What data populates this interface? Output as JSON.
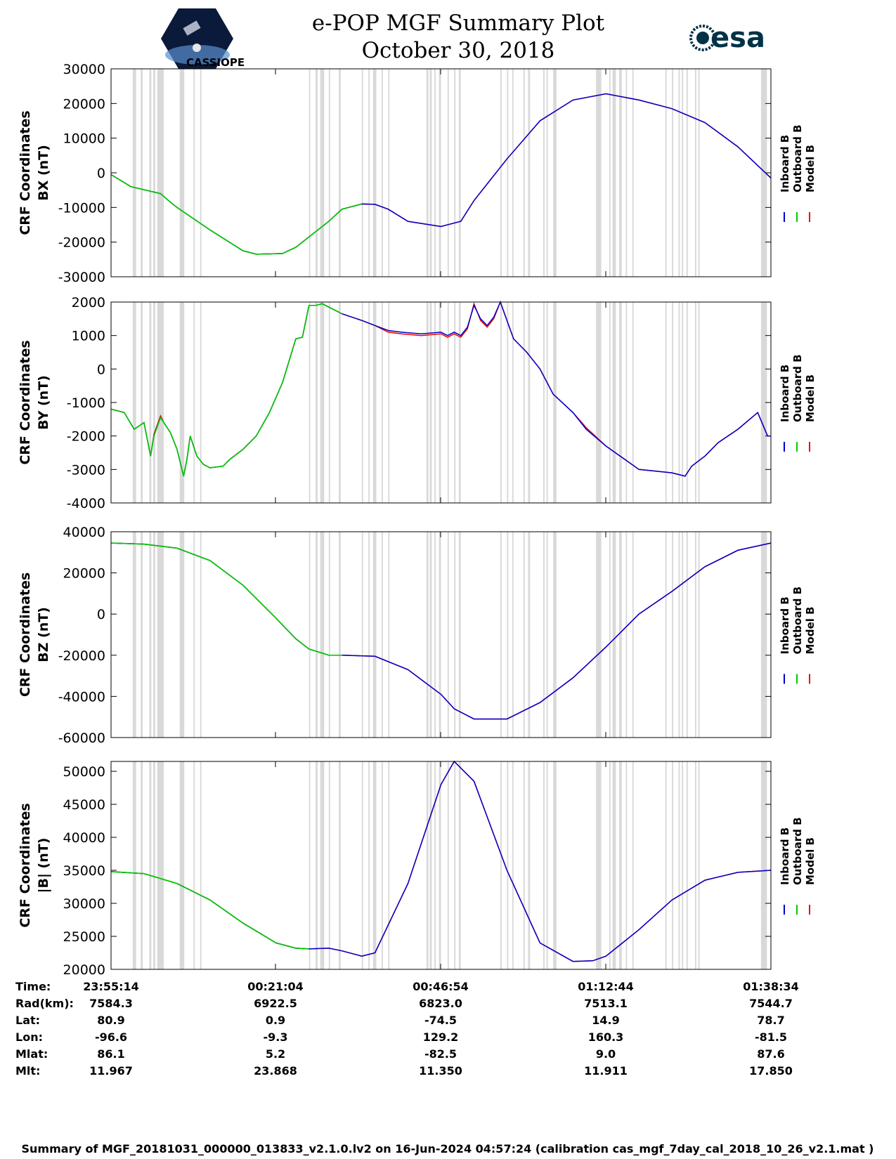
{
  "header": {
    "title_line1": "e-POP MGF Summary Plot",
    "title_line2": "October 30, 2018",
    "logo_left": "CASSIOPE",
    "logo_right": "esa"
  },
  "colors": {
    "inboard": "#0000cc",
    "outboard": "#00cc00",
    "model": "#ee0000",
    "gap_shade": "#d9d9d9"
  },
  "chart_data": [
    {
      "type": "line",
      "ylabel_line1": "CRF Coordinates",
      "ylabel_line2": "BX (nT)",
      "ylim": [
        -30000,
        30000
      ],
      "yticks": [
        "30000",
        "20000",
        "10000",
        "0",
        "-10000",
        "-20000",
        "-30000"
      ],
      "legend": [
        "Inboard B",
        "Outboard B",
        "Model B"
      ],
      "x": [
        0,
        0.03,
        0.075,
        0.09,
        0.1,
        0.15,
        0.2,
        0.22,
        0.26,
        0.28,
        0.33,
        0.35,
        0.38,
        0.4,
        0.42,
        0.45,
        0.5,
        0.53,
        0.55,
        0.6,
        0.65,
        0.7,
        0.75,
        0.8,
        0.85,
        0.9,
        0.95,
        1
      ],
      "series": [
        {
          "name": "Outboard B",
          "values": [
            -500,
            -4000,
            -6000,
            -8500,
            -10000,
            -16500,
            -22500,
            -23500,
            -23300,
            -21500,
            -14000,
            -10500,
            -9000,
            -9100,
            -10500,
            -14000,
            -15500,
            -14000,
            -8000,
            4000,
            15000,
            21000,
            22800,
            21000,
            18500,
            14500,
            7500,
            -1500
          ]
        },
        {
          "name": "Inboard B",
          "values": [
            -500,
            -4000,
            -6000,
            -8500,
            -10000,
            -16500,
            -22500,
            -23500,
            -23300,
            -21500,
            -14000,
            -10500,
            -9000,
            -9100,
            -10500,
            -14000,
            -15500,
            -14000,
            -8000,
            4000,
            15000,
            21000,
            22800,
            21000,
            18500,
            14500,
            7500,
            -1500
          ]
        },
        {
          "name": "Model B",
          "values": [
            -500,
            -4000,
            -6000,
            -8500,
            -10000,
            -16500,
            -22500,
            -23500,
            -23300,
            -21500,
            -14000,
            -10500,
            -9000,
            -9100,
            -10500,
            -14000,
            -15500,
            -14000,
            -8000,
            4000,
            15000,
            21000,
            22800,
            21000,
            18500,
            14500,
            7500,
            -1500
          ]
        }
      ]
    },
    {
      "type": "line",
      "ylabel_line1": "CRF Coordinates",
      "ylabel_line2": "BY (nT)",
      "ylim": [
        -4000,
        2000
      ],
      "yticks": [
        "2000",
        "1000",
        "0",
        "-1000",
        "-2000",
        "-3000",
        "-4000"
      ],
      "legend": [
        "Inboard B",
        "Outboard B",
        "Model B"
      ],
      "x": [
        0,
        0.01,
        0.02,
        0.035,
        0.05,
        0.06,
        0.065,
        0.075,
        0.08,
        0.09,
        0.1,
        0.11,
        0.115,
        0.12,
        0.13,
        0.14,
        0.15,
        0.17,
        0.18,
        0.2,
        0.22,
        0.24,
        0.26,
        0.28,
        0.29,
        0.3,
        0.31,
        0.32,
        0.33,
        0.35,
        0.38,
        0.4,
        0.42,
        0.44,
        0.47,
        0.5,
        0.51,
        0.52,
        0.53,
        0.54,
        0.55,
        0.56,
        0.57,
        0.58,
        0.59,
        0.6,
        0.61,
        0.63,
        0.65,
        0.67,
        0.7,
        0.72,
        0.75,
        0.8,
        0.85,
        0.87,
        0.88,
        0.9,
        0.92,
        0.95,
        0.98,
        0.995,
        1
      ],
      "series": [
        {
          "name": "Outboard B",
          "values": [
            -1200,
            -1250,
            -1300,
            -1800,
            -1600,
            -2600,
            -2000,
            -1450,
            -1600,
            -1900,
            -2400,
            -3200,
            -2700,
            -2000,
            -2600,
            -2850,
            -2950,
            -2900,
            -2700,
            -2400,
            -2000,
            -1300,
            -400,
            900,
            950,
            1900,
            1900,
            1950,
            1850,
            1650,
            1450,
            1300,
            1150,
            1100,
            1050,
            1100,
            1000,
            1100,
            1000,
            1250,
            1900,
            1500,
            1300,
            1550,
            2000,
            1450,
            900,
            500,
            0,
            -750,
            -1300,
            -1800,
            -2300,
            -3000,
            -3100,
            -3200,
            -2900,
            -2600,
            -2200,
            -1800,
            -1300,
            -2000,
            -2000
          ]
        },
        {
          "name": "Inboard B",
          "values": [
            -1200,
            -1250,
            -1300,
            -1800,
            -1600,
            -2600,
            -2000,
            -1450,
            -1600,
            -1900,
            -2400,
            -3200,
            -2700,
            -2000,
            -2600,
            -2850,
            -2950,
            -2900,
            -2700,
            -2400,
            -2000,
            -1300,
            -400,
            900,
            950,
            1900,
            1900,
            1950,
            1850,
            1650,
            1450,
            1300,
            1150,
            1100,
            1050,
            1100,
            1000,
            1100,
            1000,
            1250,
            1900,
            1500,
            1300,
            1550,
            2000,
            1450,
            900,
            500,
            0,
            -750,
            -1300,
            -1800,
            -2300,
            -3000,
            -3100,
            -3200,
            -2900,
            -2600,
            -2200,
            -1800,
            -1300,
            -2000,
            -2000
          ]
        },
        {
          "name": "Model B",
          "values": [
            -1200,
            -1250,
            -1300,
            -1800,
            -1600,
            -2600,
            -1950,
            -1400,
            -1600,
            -1900,
            -2400,
            -3200,
            -2700,
            -2000,
            -2600,
            -2850,
            -2950,
            -2900,
            -2700,
            -2400,
            -2000,
            -1300,
            -400,
            900,
            950,
            1900,
            1900,
            1950,
            1850,
            1650,
            1450,
            1300,
            1100,
            1050,
            1000,
            1050,
            950,
            1050,
            950,
            1200,
            1950,
            1450,
            1250,
            1500,
            2000,
            1450,
            900,
            500,
            0,
            -750,
            -1300,
            -1750,
            -2300,
            -3000,
            -3100,
            -3200,
            -2900,
            -2600,
            -2200,
            -1800,
            -1300,
            -2000,
            -2000
          ]
        }
      ]
    },
    {
      "type": "line",
      "ylabel_line1": "CRF Coordinates",
      "ylabel_line2": "BZ (nT)",
      "ylim": [
        -60000,
        40000
      ],
      "yticks": [
        "40000",
        "20000",
        "0",
        "-20000",
        "-40000",
        "-60000"
      ],
      "legend": [
        "Inboard B",
        "Outboard B",
        "Model B"
      ],
      "x": [
        0,
        0.05,
        0.1,
        0.15,
        0.2,
        0.25,
        0.28,
        0.3,
        0.33,
        0.35,
        0.4,
        0.45,
        0.5,
        0.52,
        0.55,
        0.6,
        0.65,
        0.7,
        0.75,
        0.8,
        0.85,
        0.9,
        0.95,
        1
      ],
      "series": [
        {
          "name": "Outboard B",
          "values": [
            34500,
            34000,
            32000,
            26000,
            14000,
            -2000,
            -12000,
            -17000,
            -20000,
            -20000,
            -20500,
            -27000,
            -39000,
            -46000,
            -51000,
            -51000,
            -43000,
            -31000,
            -16000,
            0,
            11000,
            23000,
            31000,
            34500
          ]
        },
        {
          "name": "Inboard B",
          "values": [
            34500,
            34000,
            32000,
            26000,
            14000,
            -2000,
            -12000,
            -17000,
            -20000,
            -20000,
            -20500,
            -27000,
            -39000,
            -46000,
            -51000,
            -51000,
            -43000,
            -31000,
            -16000,
            0,
            11000,
            23000,
            31000,
            34500
          ]
        },
        {
          "name": "Model B",
          "values": [
            34500,
            34000,
            32000,
            26000,
            14000,
            -2000,
            -12000,
            -17000,
            -20000,
            -20000,
            -20500,
            -27000,
            -39000,
            -46000,
            -51000,
            -51000,
            -43000,
            -31000,
            -16000,
            0,
            11000,
            23000,
            31000,
            34500
          ]
        }
      ]
    },
    {
      "type": "line",
      "ylabel_line1": "CRF Coordinates",
      "ylabel_line2": "|B| (nT)",
      "ylim": [
        20000,
        51500
      ],
      "yticks": [
        "50000",
        "45000",
        "40000",
        "35000",
        "30000",
        "25000",
        "20000"
      ],
      "legend": [
        "Inboard B",
        "Outboard B",
        "Model B"
      ],
      "x": [
        0,
        0.05,
        0.1,
        0.15,
        0.2,
        0.25,
        0.28,
        0.3,
        0.33,
        0.35,
        0.38,
        0.4,
        0.45,
        0.5,
        0.52,
        0.55,
        0.6,
        0.65,
        0.7,
        0.73,
        0.75,
        0.8,
        0.85,
        0.9,
        0.95,
        1
      ],
      "series": [
        {
          "name": "Outboard B",
          "values": [
            34800,
            34500,
            33000,
            30500,
            27000,
            24000,
            23200,
            23100,
            23200,
            22800,
            22000,
            22500,
            33000,
            48000,
            51500,
            48500,
            35000,
            24000,
            21200,
            21300,
            22000,
            26000,
            30500,
            33500,
            34700,
            35000
          ]
        },
        {
          "name": "Inboard B",
          "values": [
            34800,
            34500,
            33000,
            30500,
            27000,
            24000,
            23200,
            23100,
            23200,
            22800,
            22000,
            22500,
            33000,
            48000,
            51500,
            48500,
            35000,
            24000,
            21200,
            21300,
            22000,
            26000,
            30500,
            33500,
            34700,
            35000
          ]
        },
        {
          "name": "Model B",
          "values": [
            34800,
            34500,
            33000,
            30500,
            27000,
            24000,
            23200,
            23100,
            23200,
            22800,
            22000,
            22500,
            33000,
            48000,
            51500,
            48500,
            35000,
            24000,
            21200,
            21300,
            22000,
            26000,
            30500,
            33500,
            34700,
            35000
          ]
        }
      ]
    }
  ],
  "outboard_until_fraction": [
    0.39,
    0.35,
    0.375,
    0.315
  ],
  "gap_bands": [
    [
      0.033,
      0.038
    ],
    [
      0.045,
      0.048
    ],
    [
      0.058,
      0.061
    ],
    [
      0.064,
      0.067
    ],
    [
      0.07,
      0.08
    ],
    [
      0.104,
      0.111
    ],
    [
      0.125,
      0.127
    ],
    [
      0.135,
      0.137
    ],
    [
      0.3,
      0.302
    ],
    [
      0.31,
      0.313
    ],
    [
      0.317,
      0.323
    ],
    [
      0.33,
      0.332
    ],
    [
      0.345,
      0.348
    ],
    [
      0.38,
      0.382
    ],
    [
      0.39,
      0.392
    ],
    [
      0.397,
      0.402
    ],
    [
      0.41,
      0.412
    ],
    [
      0.42,
      0.422
    ],
    [
      0.478,
      0.481
    ],
    [
      0.483,
      0.486
    ],
    [
      0.49,
      0.492
    ],
    [
      0.497,
      0.5
    ],
    [
      0.51,
      0.512
    ],
    [
      0.52,
      0.522
    ],
    [
      0.527,
      0.53
    ],
    [
      0.59,
      0.592
    ],
    [
      0.6,
      0.602
    ],
    [
      0.608,
      0.61
    ],
    [
      0.625,
      0.627
    ],
    [
      0.632,
      0.635
    ],
    [
      0.655,
      0.657
    ],
    [
      0.66,
      0.662
    ],
    [
      0.67,
      0.675
    ],
    [
      0.735,
      0.743
    ],
    [
      0.755,
      0.757
    ],
    [
      0.76,
      0.765
    ],
    [
      0.77,
      0.774
    ],
    [
      0.78,
      0.782
    ],
    [
      0.79,
      0.792
    ],
    [
      0.84,
      0.842
    ],
    [
      0.85,
      0.852
    ],
    [
      0.86,
      0.862
    ],
    [
      0.865,
      0.867
    ],
    [
      0.872,
      0.874
    ],
    [
      0.885,
      0.887
    ],
    [
      0.89,
      0.892
    ],
    [
      0.985,
      0.994
    ]
  ],
  "info_table": {
    "labels": [
      "Time:",
      "Rad(km):",
      "Lat:",
      "Lon:",
      "Mlat:",
      "Mlt:"
    ],
    "columns": [
      [
        "23:55:14",
        "7584.3",
        "80.9",
        "-96.6",
        "86.1",
        "11.967"
      ],
      [
        "00:21:04",
        "6922.5",
        "0.9",
        "-9.3",
        "5.2",
        "23.868"
      ],
      [
        "00:46:54",
        "6823.0",
        "-74.5",
        "129.2",
        "-82.5",
        "11.350"
      ],
      [
        "01:12:44",
        "7513.1",
        "14.9",
        "160.3",
        "9.0",
        "11.911"
      ],
      [
        "01:38:34",
        "7544.7",
        "78.7",
        "-81.5",
        "87.6",
        "17.850"
      ]
    ]
  },
  "footer": "Summary of MGF_20181031_000000_013833_v2.1.0.lv2 on 16-Jun-2024 04:57:24 (calibration cas_mgf_7day_cal_2018_10_26_v2.1.mat )"
}
